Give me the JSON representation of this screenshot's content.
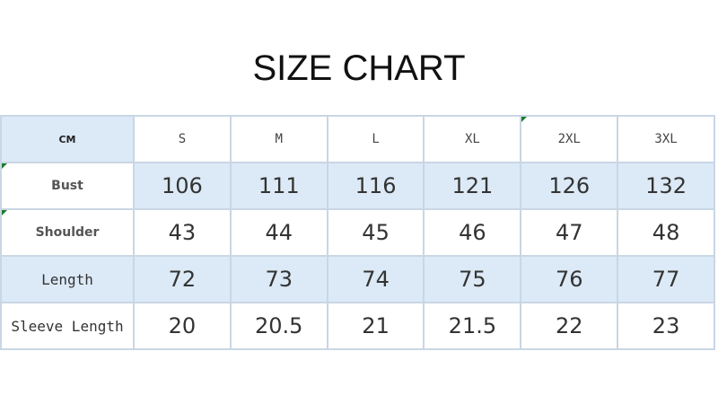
{
  "title": "SIZE CHART",
  "table": {
    "corner": "CM",
    "sizes": [
      "S",
      "M",
      "L",
      "XL",
      "2XL",
      "3XL"
    ],
    "rows": [
      {
        "label": "Bust",
        "values": [
          "106",
          "111",
          "116",
          "121",
          "126",
          "132"
        ]
      },
      {
        "label": "Shoulder",
        "values": [
          "43",
          "44",
          "45",
          "46",
          "47",
          "48"
        ]
      },
      {
        "label": "Length",
        "values": [
          "72",
          "73",
          "74",
          "75",
          "76",
          "77"
        ]
      },
      {
        "label": "Sleeve Length",
        "values": [
          "20",
          "20.5",
          "21",
          "21.5",
          "22",
          "23"
        ]
      }
    ]
  },
  "colors": {
    "row_highlight": "#dce9f6",
    "border": "#c9d6e4"
  }
}
